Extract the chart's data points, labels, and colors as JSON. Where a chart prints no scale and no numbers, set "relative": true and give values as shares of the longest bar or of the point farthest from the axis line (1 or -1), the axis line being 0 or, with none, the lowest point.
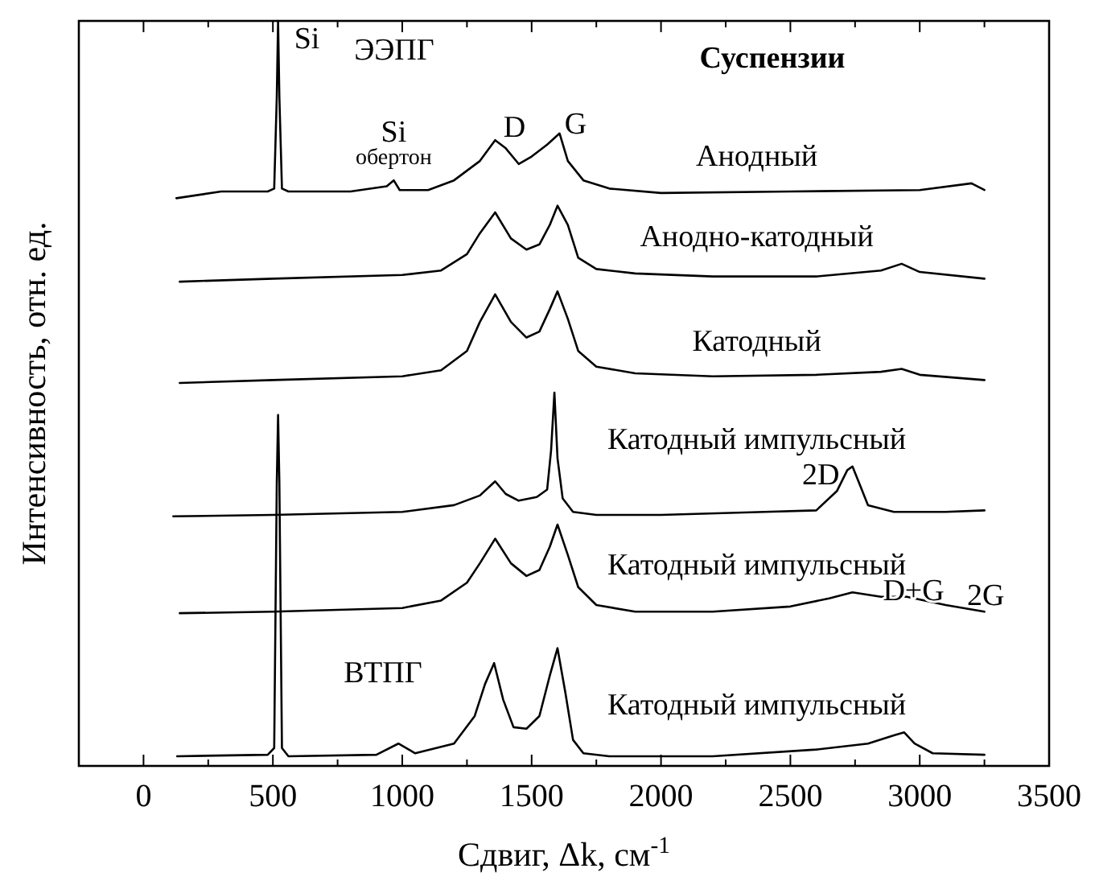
{
  "chart_data": {
    "type": "line",
    "relative": true,
    "xlabel": "Сдвиг, Δk, см$^{-1}$",
    "ylabel": "Интенсивность, отн. ед.",
    "xlim": [
      -250,
      3500
    ],
    "xticks": [
      0,
      {
        "value": 250,
        "label": null
      },
      500,
      {
        "value": 750,
        "label": null
      },
      1000,
      {
        "value": 1250,
        "label": null
      },
      1500,
      {
        "value": 1750,
        "label": null
      },
      2000,
      {
        "value": 2250,
        "label": null
      },
      2500,
      {
        "value": 2750,
        "label": null
      },
      3000,
      {
        "value": 3250,
        "label": null
      },
      3500
    ],
    "series": [
      {
        "name": "Анодный",
        "color": "#000000",
        "x": [
          127,
          300,
          480,
          505,
          515,
          520,
          525,
          535,
          560,
          800,
          940,
          967,
          990,
          1100,
          1200,
          1300,
          1359,
          1400,
          1450,
          1500,
          1560,
          1608,
          1640,
          1700,
          1800,
          2000,
          2500,
          3000,
          3200,
          3250
        ],
        "values": [
          0.762,
          0.771,
          0.771,
          0.775,
          0.898,
          1,
          0.898,
          0.775,
          0.771,
          0.771,
          0.778,
          0.786,
          0.773,
          0.773,
          0.786,
          0.812,
          0.84,
          0.829,
          0.808,
          0.818,
          0.834,
          0.849,
          0.812,
          0.786,
          0.775,
          0.769,
          0.771,
          0.773,
          0.782,
          0.773
        ]
      },
      {
        "name": "Анодно-катодный",
        "color": "#000000",
        "x": [
          140,
          500,
          1000,
          1150,
          1250,
          1300,
          1359,
          1420,
          1480,
          1530,
          1570,
          1600,
          1640,
          1680,
          1750,
          1900,
          2200,
          2600,
          2850,
          2930,
          3000,
          3250
        ],
        "values": [
          0.65,
          0.654,
          0.659,
          0.665,
          0.687,
          0.715,
          0.743,
          0.708,
          0.693,
          0.7,
          0.726,
          0.752,
          0.726,
          0.682,
          0.667,
          0.661,
          0.657,
          0.657,
          0.665,
          0.674,
          0.663,
          0.654
        ]
      },
      {
        "name": "Катодный",
        "color": "#000000",
        "x": [
          140,
          500,
          1000,
          1150,
          1250,
          1300,
          1359,
          1420,
          1480,
          1530,
          1570,
          1600,
          1640,
          1680,
          1750,
          1900,
          2200,
          2600,
          2850,
          2930,
          3000,
          3250
        ],
        "values": [
          0.514,
          0.518,
          0.523,
          0.531,
          0.557,
          0.596,
          0.633,
          0.596,
          0.575,
          0.583,
          0.613,
          0.637,
          0.6,
          0.557,
          0.536,
          0.527,
          0.523,
          0.525,
          0.529,
          0.533,
          0.525,
          0.518
        ]
      },
      {
        "name": "Катодный импульсный",
        "color": "#000000",
        "x": [
          115,
          500,
          1000,
          1200,
          1300,
          1359,
          1400,
          1450,
          1520,
          1560,
          1575,
          1588,
          1600,
          1620,
          1660,
          1750,
          2000,
          2400,
          2600,
          2680,
          2720,
          2740,
          2770,
          2800,
          2900,
          3100,
          3250
        ],
        "values": [
          0.335,
          0.337,
          0.341,
          0.35,
          0.363,
          0.382,
          0.365,
          0.356,
          0.361,
          0.371,
          0.423,
          0.501,
          0.413,
          0.359,
          0.341,
          0.337,
          0.337,
          0.341,
          0.343,
          0.369,
          0.397,
          0.402,
          0.376,
          0.35,
          0.341,
          0.341,
          0.343
        ]
      },
      {
        "name": "Катодный импульсный",
        "color": "#000000",
        "x": [
          140,
          500,
          1000,
          1150,
          1250,
          1300,
          1359,
          1420,
          1480,
          1530,
          1570,
          1600,
          1640,
          1680,
          1750,
          1900,
          2200,
          2500,
          2650,
          2740,
          2850,
          2950,
          3100,
          3250
        ],
        "values": [
          0.205,
          0.207,
          0.212,
          0.222,
          0.246,
          0.272,
          0.305,
          0.272,
          0.255,
          0.263,
          0.294,
          0.324,
          0.283,
          0.24,
          0.216,
          0.207,
          0.207,
          0.214,
          0.225,
          0.233,
          0.227,
          0.227,
          0.216,
          0.207
        ]
      },
      {
        "name": "Катодный импульсный",
        "color": "#000000",
        "x": [
          130,
          480,
          505,
          515,
          520,
          525,
          535,
          560,
          900,
          985,
          1050,
          1200,
          1280,
          1320,
          1355,
          1390,
          1430,
          1480,
          1530,
          1570,
          1600,
          1630,
          1660,
          1700,
          1800,
          2200,
          2600,
          2800,
          2900,
          2940,
          2980,
          3050,
          3250
        ],
        "values": [
          0.013,
          0.015,
          0.024,
          0.38,
          0.471,
          0.38,
          0.024,
          0.013,
          0.015,
          0.03,
          0.017,
          0.03,
          0.067,
          0.11,
          0.138,
          0.089,
          0.052,
          0.05,
          0.067,
          0.121,
          0.158,
          0.099,
          0.035,
          0.017,
          0.013,
          0.013,
          0.022,
          0.03,
          0.041,
          0.045,
          0.03,
          0.017,
          0.015
        ]
      }
    ],
    "annotations": [
      {
        "text": "Si",
        "x": 520,
        "y": 1
      },
      {
        "text": "Si",
        "x": 967,
        "y": 0.786
      },
      {
        "text": "обертон",
        "x": 967,
        "y": 0.786
      },
      {
        "text": "D",
        "x": 1359,
        "y": 0.84
      },
      {
        "text": "G",
        "x": 1608,
        "y": 0.849
      },
      {
        "text": "2D",
        "x": 2740,
        "y": 0.402
      },
      {
        "text": "D+G",
        "x": 2740,
        "y": 0.233
      },
      {
        "text": "2G",
        "x": 2950,
        "y": 0.227
      },
      "ЭЭПГ",
      "Суспензии",
      "ВТПГ"
    ]
  }
}
